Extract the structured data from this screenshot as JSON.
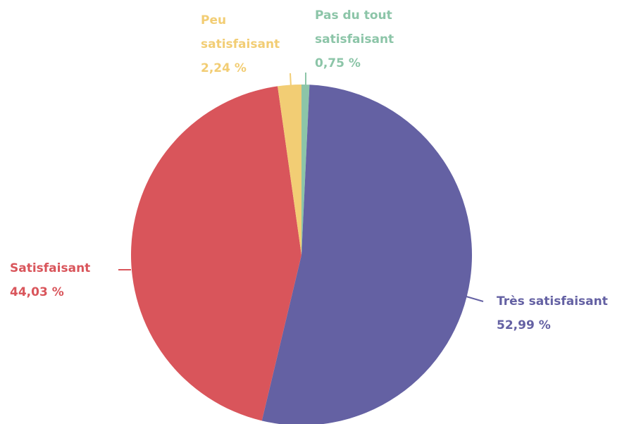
{
  "chart_data": {
    "type": "pie",
    "categories": [
      "Pas du tout satisfaisant",
      "Très satisfaisant",
      "Satisfaisant",
      "Peu satisfaisant"
    ],
    "values": [
      0.75,
      52.99,
      44.03,
      2.24
    ],
    "value_labels": [
      "0,75 %",
      "52,99 %",
      "44,03 %",
      "2,24 %"
    ],
    "colors": [
      "#8cc5a8",
      "#6461a3",
      "#d9555b",
      "#f2cd74"
    ]
  }
}
